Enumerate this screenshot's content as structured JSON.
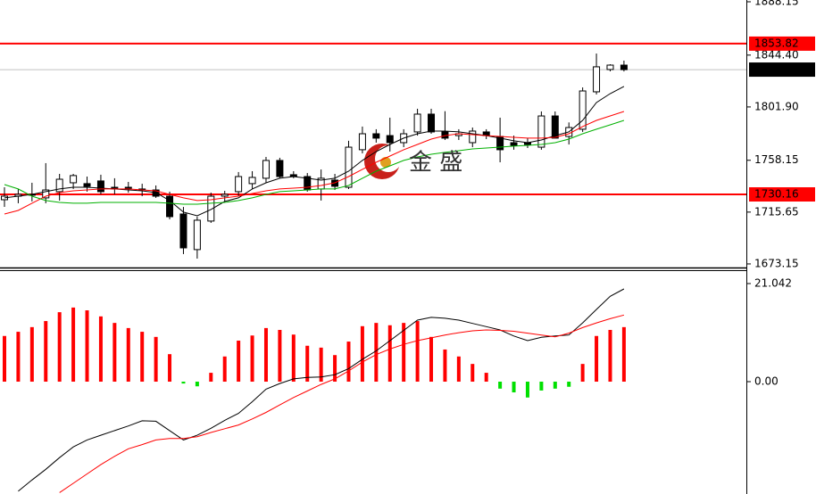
{
  "chart_data": [
    {
      "type": "candlestick",
      "categories": [
        null,
        null,
        null,
        null,
        null,
        null,
        null,
        null,
        null,
        null,
        null,
        null,
        null,
        null,
        null,
        null,
        null,
        null,
        null,
        null,
        null,
        null,
        null,
        null,
        null,
        null,
        null,
        null,
        null,
        null,
        null,
        null,
        null,
        null,
        null,
        null,
        null,
        null,
        null,
        null,
        null,
        null,
        null,
        null,
        null,
        null
      ],
      "open": [
        1725.8,
        1728.7,
        1730.2,
        1727.3,
        1732.4,
        1739.7,
        1739.0,
        1741.2,
        1736.0,
        1735.3,
        1734.6,
        1733.8,
        1728.7,
        1714.1,
        1684.9,
        1708.3,
        1728.7,
        1732.4,
        1739.0,
        1743.4,
        1758.0,
        1746.3,
        1744.8,
        1734.6,
        1741.9,
        1736.0,
        1766.8,
        1779.9,
        1778.4,
        1772.6,
        1781.4,
        1796.0,
        1781.4,
        1778.4,
        1772.6,
        1781.4,
        1777.7,
        1772.6,
        1772.6,
        1768.9,
        1794.5,
        1777.7,
        1783.6,
        1814.3,
        1832.6,
        1836.2
      ],
      "high": [
        1736.0,
        1734.6,
        1739.7,
        1755.8,
        1747.0,
        1747.0,
        1744.8,
        1746.3,
        1743.4,
        1740.4,
        1738.9,
        1737.5,
        1732.4,
        1719.9,
        1711.9,
        1731.6,
        1733.1,
        1748.5,
        1749.2,
        1760.9,
        1760.2,
        1749.2,
        1747.7,
        1750.6,
        1747.0,
        1774.1,
        1785.8,
        1783.6,
        1793.1,
        1783.6,
        1800.4,
        1800.4,
        1798.4,
        1783.6,
        1785.0,
        1783.6,
        1793.1,
        1778.4,
        1776.3,
        1798.2,
        1798.2,
        1789.2,
        1817.9,
        1845.7,
        1836.9,
        1839.9
      ],
      "low": [
        1719.9,
        1722.9,
        1724.4,
        1722.9,
        1725.1,
        1734.6,
        1732.4,
        1730.2,
        1730.2,
        1731.6,
        1728.7,
        1727.3,
        1709.7,
        1681.2,
        1677.5,
        1706.8,
        1724.4,
        1728.7,
        1734.6,
        1739.7,
        1743.4,
        1743.4,
        1732.4,
        1725.1,
        1733.8,
        1734.6,
        1763.8,
        1772.6,
        1765.3,
        1768.9,
        1778.4,
        1779.9,
        1774.8,
        1774.8,
        1768.9,
        1775.5,
        1756.5,
        1766.8,
        1768.2,
        1766.8,
        1776.3,
        1771.1,
        1781.4,
        1812.1,
        1831.1,
        1831.0
      ],
      "close": [
        1728.7,
        1730.2,
        1729.5,
        1733.8,
        1742.6,
        1745.6,
        1736.8,
        1732.4,
        1734.6,
        1736.0,
        1733.8,
        1728.7,
        1711.9,
        1686.3,
        1709.0,
        1728.7,
        1730.2,
        1744.8,
        1744.1,
        1758.0,
        1744.8,
        1744.8,
        1733.8,
        1743.4,
        1736.8,
        1768.9,
        1779.9,
        1776.3,
        1772.6,
        1779.9,
        1796.0,
        1781.4,
        1776.3,
        1779.9,
        1782.1,
        1778.4,
        1766.8,
        1770.4,
        1771.1,
        1794.5,
        1776.3,
        1785.0,
        1815.0,
        1834.8,
        1836.2,
        1832.51
      ],
      "series": [
        {
          "color": "#000000",
          "values": [
            1727.3,
            1728.7,
            1730.2,
            1732.4,
            1734.6,
            1736.0,
            1736.0,
            1735.3,
            1734.6,
            1733.8,
            1733.1,
            1731.6,
            1725.1,
            1715.6,
            1712.6,
            1717.8,
            1724.4,
            1727.3,
            1734.6,
            1739.7,
            1743.4,
            1744.8,
            1743.4,
            1741.9,
            1743.4,
            1749.2,
            1758.0,
            1765.3,
            1771.1,
            1776.3,
            1779.9,
            1782.1,
            1782.1,
            1781.4,
            1779.9,
            1778.4,
            1776.3,
            1774.1,
            1772.6,
            1774.8,
            1778.4,
            1781.4,
            1790.9,
            1805.5,
            1812.8,
            1818.7
          ]
        },
        {
          "color": "#ff0000",
          "values": [
            1714.1,
            1717.0,
            1722.9,
            1728.7,
            1731.6,
            1733.1,
            1733.8,
            1734.6,
            1734.6,
            1734.6,
            1733.8,
            1733.1,
            1730.2,
            1727.3,
            1725.1,
            1725.8,
            1727.3,
            1728.7,
            1730.9,
            1733.1,
            1734.6,
            1735.3,
            1736.0,
            1737.5,
            1739.7,
            1744.8,
            1750.7,
            1756.5,
            1761.6,
            1766.8,
            1771.1,
            1775.5,
            1778.4,
            1779.9,
            1779.2,
            1778.4,
            1777.7,
            1777.0,
            1776.3,
            1776.3,
            1777.0,
            1779.9,
            1785.8,
            1790.9,
            1794.5,
            1798.2
          ]
        },
        {
          "color": "#00b000",
          "values": [
            1738.2,
            1734.6,
            1728.7,
            1725.1,
            1723.6,
            1722.9,
            1722.9,
            1723.6,
            1723.6,
            1723.6,
            1723.6,
            1723.6,
            1722.9,
            1722.1,
            1722.1,
            1722.9,
            1723.6,
            1725.1,
            1727.3,
            1730.2,
            1732.4,
            1733.1,
            1733.8,
            1734.6,
            1734.6,
            1737.5,
            1743.4,
            1749.2,
            1753.6,
            1758.0,
            1760.9,
            1763.1,
            1764.6,
            1766.0,
            1767.5,
            1768.2,
            1768.9,
            1769.7,
            1770.4,
            1771.1,
            1772.6,
            1775.5,
            1779.9,
            1783.6,
            1787.2,
            1790.9
          ]
        }
      ],
      "ylim": [
        1670.2,
        1889.6
      ],
      "yticks": [
        1888.15,
        {
          "value": 1844.4,
          "label": "1844.40"
        },
        {
          "value": 1801.9,
          "label": "1801.90"
        },
        1758.15,
        1715.65,
        1673.15
      ],
      "levels": [
        {
          "value": 1853.82,
          "color": "#ff0000",
          "line": "#ff0000"
        },
        {
          "value": 1730.16,
          "color": "#ff0000",
          "line": "#ff0000"
        },
        {
          "value": 1832.51,
          "color": "#000000",
          "line": "#c0c0c0"
        }
      ],
      "watermark": "金 盛"
    },
    {
      "type": "bar",
      "categories": [
        null,
        null,
        null,
        null,
        null,
        null,
        null,
        null,
        null,
        null,
        null,
        null,
        null,
        null,
        null,
        null,
        null,
        null,
        null,
        null,
        null,
        null,
        null,
        null,
        null,
        null,
        null,
        null,
        null,
        null,
        null,
        null,
        null,
        null,
        null,
        null,
        null,
        null,
        null,
        null,
        null,
        null,
        null,
        null,
        null,
        null
      ],
      "values": [
        9.8,
        10.7,
        11.7,
        13.0,
        14.9,
        15.9,
        15.3,
        14.0,
        12.6,
        11.5,
        10.7,
        9.6,
        5.9,
        -0.4,
        -1.0,
        1.9,
        5.4,
        8.8,
        9.9,
        11.5,
        11.1,
        10.1,
        7.7,
        7.3,
        5.7,
        8.6,
        11.9,
        12.6,
        12.1,
        12.6,
        13.0,
        9.6,
        6.9,
        5.4,
        3.8,
        1.9,
        -1.5,
        -2.3,
        -3.4,
        -1.9,
        -1.5,
        -1.1,
        3.8,
        9.8,
        11.1,
        11.7
      ],
      "colors": {
        "positive": "#ff0000",
        "negative": "#00e000"
      },
      "series": [
        {
          "color": "#000000",
          "values": [
            null,
            -23.5,
            -21.1,
            -18.8,
            -16.3,
            -14.0,
            -12.5,
            -11.5,
            -10.5,
            -9.5,
            -8.4,
            -8.5,
            -10.5,
            -12.5,
            -11.5,
            -10.0,
            -8.3,
            -6.8,
            -4.3,
            -1.6,
            -0.4,
            0.6,
            0.9,
            1.0,
            1.5,
            2.8,
            4.8,
            6.6,
            8.8,
            11.0,
            13.2,
            13.8,
            13.6,
            13.2,
            12.5,
            11.8,
            11.1,
            9.8,
            8.8,
            9.5,
            9.8,
            10.0,
            12.6,
            15.5,
            18.3,
            19.9
          ]
        },
        {
          "color": "#ff0000",
          "values": [
            null,
            null,
            null,
            null,
            -23.8,
            -21.8,
            -19.8,
            -17.8,
            -16.0,
            -14.4,
            -13.5,
            -12.5,
            -12.2,
            -12.2,
            -11.8,
            -10.9,
            -10.1,
            -9.3,
            -8.0,
            -6.6,
            -5.0,
            -3.4,
            -2.0,
            -0.6,
            0.6,
            2.3,
            4.2,
            5.8,
            7.0,
            8.0,
            8.8,
            9.4,
            10.0,
            10.5,
            10.9,
            11.1,
            11.0,
            10.8,
            10.4,
            10.0,
            9.6,
            10.4,
            11.6,
            12.6,
            13.5,
            14.3
          ]
        }
      ],
      "ylim": [
        -24.1,
        23.53
      ],
      "yticks": [
        21.042,
        {
          "value": 0,
          "label": "0.00"
        }
      ]
    }
  ]
}
